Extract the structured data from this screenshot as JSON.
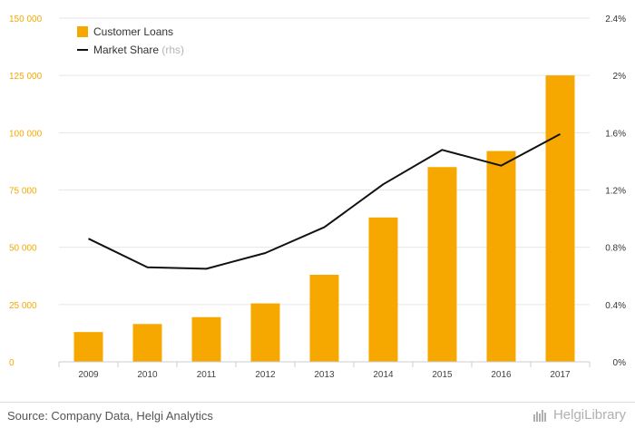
{
  "colors": {
    "bar": "#f7a800",
    "line": "#111111",
    "grid": "#e6e6e6",
    "left_axis_text": "#f7a800"
  },
  "chart_data": {
    "type": "bar",
    "categories": [
      "2009",
      "2010",
      "2011",
      "2012",
      "2013",
      "2014",
      "2015",
      "2016",
      "2017"
    ],
    "series": [
      {
        "name": "Customer Loans",
        "type": "bar",
        "axis": "left",
        "values": [
          13000,
          16500,
          19500,
          25500,
          38000,
          63000,
          85000,
          92000,
          125000
        ]
      },
      {
        "name": "Market Share",
        "type": "line",
        "axis": "right",
        "suffix": "(rhs)",
        "values": [
          0.86,
          0.66,
          0.65,
          0.76,
          0.94,
          1.24,
          1.48,
          1.37,
          1.59
        ]
      }
    ],
    "left_axis": {
      "ylim": [
        0,
        150000
      ],
      "ticks": [
        0,
        25000,
        50000,
        75000,
        100000,
        125000,
        150000
      ],
      "tick_labels": [
        "0",
        "25 000",
        "50 000",
        "75 000",
        "100 000",
        "125 000",
        "150 000"
      ]
    },
    "right_axis": {
      "ylim": [
        0,
        2.4
      ],
      "ticks": [
        0,
        0.4,
        0.8,
        1.2,
        1.6,
        2.0,
        2.4
      ],
      "tick_labels": [
        "0%",
        "0.4%",
        "0.8%",
        "1.2%",
        "1.6%",
        "2%",
        "2.4%"
      ]
    },
    "grid": true,
    "legend_position": "top-left"
  },
  "legend": {
    "bar_label": "Customer Loans",
    "line_label": "Market Share",
    "line_suffix": "(rhs)"
  },
  "footer": {
    "source": "Source: Company Data, Helgi Analytics",
    "brand": "HelgiLibrary"
  }
}
